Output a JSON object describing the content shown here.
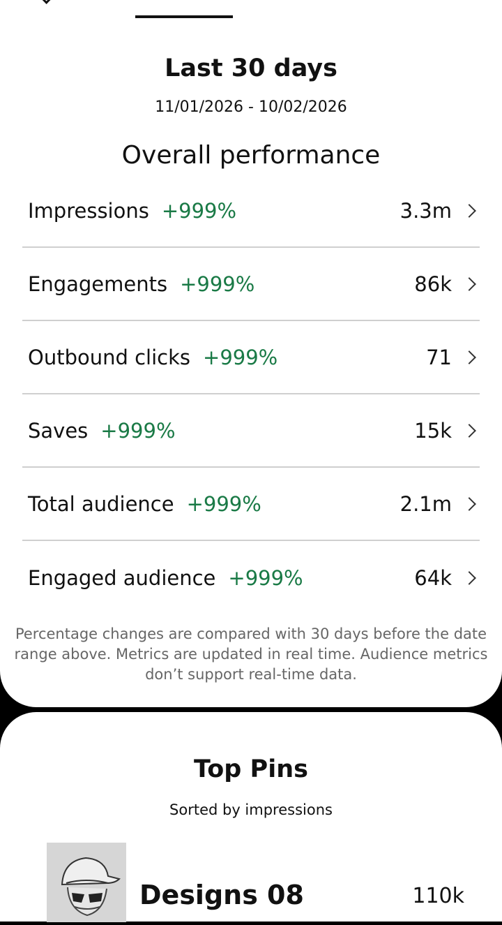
{
  "period": {
    "title": "Last 30 days",
    "date_range": "11/01/2026 - 10/02/2026"
  },
  "overall": {
    "title": "Overall performance",
    "metrics": [
      {
        "label": "Impressions",
        "change": "+999%",
        "value": "3.3m"
      },
      {
        "label": "Engagements",
        "change": "+999%",
        "value": "86k"
      },
      {
        "label": "Outbound clicks",
        "change": "+999%",
        "value": "71"
      },
      {
        "label": "Saves",
        "change": "+999%",
        "value": "15k"
      },
      {
        "label": "Total audience",
        "change": "+999%",
        "value": "2.1m"
      },
      {
        "label": "Engaged audience",
        "change": "+999%",
        "value": "64k"
      }
    ],
    "footnote": "Percentage changes are compared with 30 days before the date range above. Metrics are updated in real time. Audience metrics don’t support real-time data."
  },
  "top_pins": {
    "title": "Top Pins",
    "subtitle": "Sorted by impressions",
    "first_pin": {
      "title": "Designs 08",
      "value": "110k"
    }
  },
  "colors": {
    "positive_change": "#1a7a46",
    "divider": "#cfcfcf",
    "background": "#000000"
  }
}
